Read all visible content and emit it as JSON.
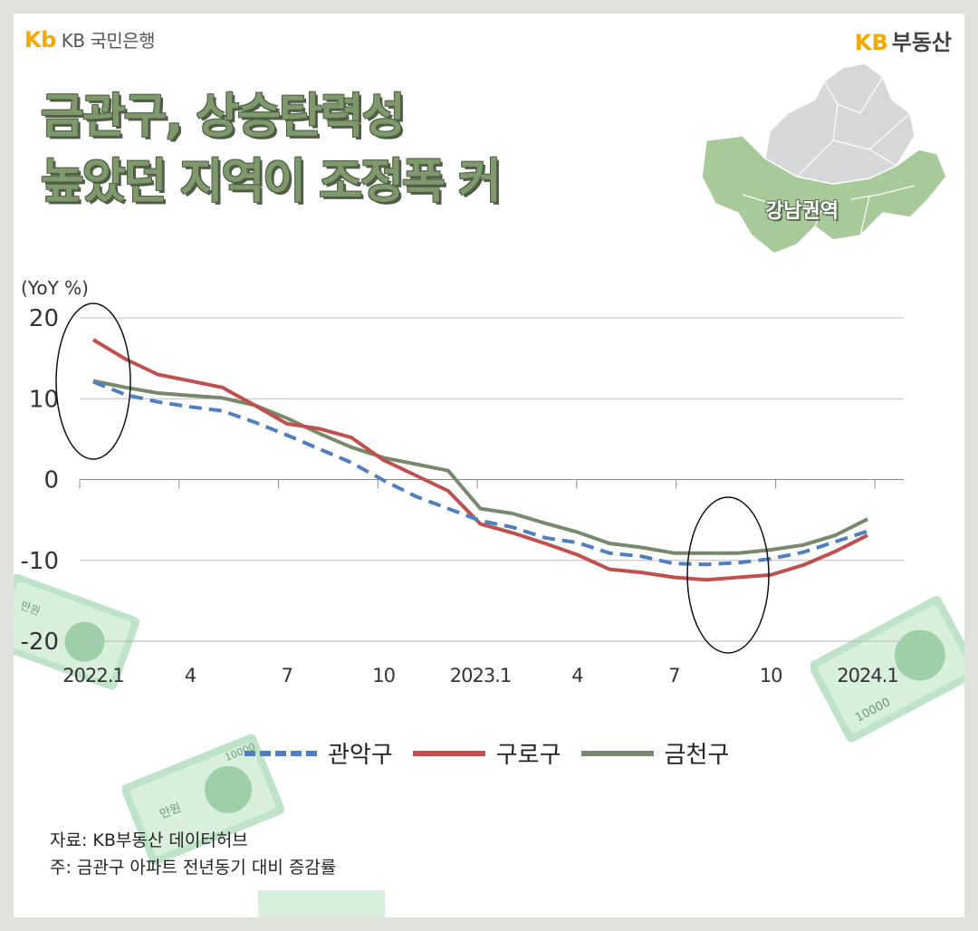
{
  "header": {
    "bank_logo": "KB 국민은행",
    "bank_logo_mark": "Kb",
    "brand_kb": "KB",
    "brand_name": "부동산"
  },
  "title": {
    "line1": "금관구, 상승탄력성",
    "line2": "높았던 지역이 조정폭 커"
  },
  "map": {
    "label": "강남권역"
  },
  "colors": {
    "gwanak": "#4f7fbf",
    "guro": "#c0504d",
    "geumcheon": "#76896a",
    "grid": "#bbbbbb",
    "map_green": "#a8c99a",
    "map_gray": "#d6d7d9"
  },
  "chart_data": {
    "type": "line",
    "unit_label": "(YoY %)",
    "ylim": [
      -20,
      20
    ],
    "yticks": [
      20,
      10,
      0,
      -10,
      -20
    ],
    "x": [
      0,
      1,
      2,
      3,
      4,
      5,
      6,
      7,
      8,
      9,
      10,
      11,
      12,
      13,
      14,
      15,
      16,
      17,
      18,
      19,
      20,
      21,
      22,
      23,
      24
    ],
    "xtick_positions": [
      0,
      3,
      6,
      9,
      12,
      15,
      18,
      21,
      24
    ],
    "xtick_labels": [
      "2022.1",
      "4",
      "7",
      "10",
      "2023.1",
      "4",
      "7",
      "10",
      "2024.1"
    ],
    "series": [
      {
        "name": "관악구",
        "style": "dashed",
        "values": [
          12.1,
          10.5,
          9.6,
          9.0,
          8.5,
          7.1,
          5.5,
          3.8,
          2.1,
          -0.1,
          -2.1,
          -3.6,
          -5.1,
          -5.9,
          -7.2,
          -7.8,
          -9.1,
          -9.5,
          -10.4,
          -10.5,
          -10.3,
          -9.8,
          -9.0,
          -7.7,
          -6.4
        ]
      },
      {
        "name": "구로구",
        "style": "solid",
        "values": [
          17.3,
          14.9,
          13.0,
          12.2,
          11.4,
          9.2,
          6.9,
          6.3,
          5.2,
          2.4,
          0.5,
          -1.4,
          -5.5,
          -6.6,
          -7.9,
          -9.3,
          -11.1,
          -11.5,
          -12.1,
          -12.4,
          -12.1,
          -11.8,
          -10.6,
          -8.9,
          -6.9
        ]
      },
      {
        "name": "금천구",
        "style": "solid",
        "values": [
          12.2,
          11.4,
          10.7,
          10.4,
          10.1,
          9.2,
          7.6,
          5.7,
          4.0,
          2.7,
          1.9,
          1.1,
          -3.6,
          -4.2,
          -5.4,
          -6.5,
          -7.9,
          -8.4,
          -9.1,
          -9.1,
          -9.1,
          -8.7,
          -8.1,
          -6.9,
          -4.9
        ]
      }
    ],
    "annotations": [
      "circle around 2022.1",
      "circle around 2023.8"
    ]
  },
  "source": {
    "line1": "자료: KB부동산 데이터허브",
    "line2": "주: 금관구 아파트 전년동기 대비 증감률"
  }
}
